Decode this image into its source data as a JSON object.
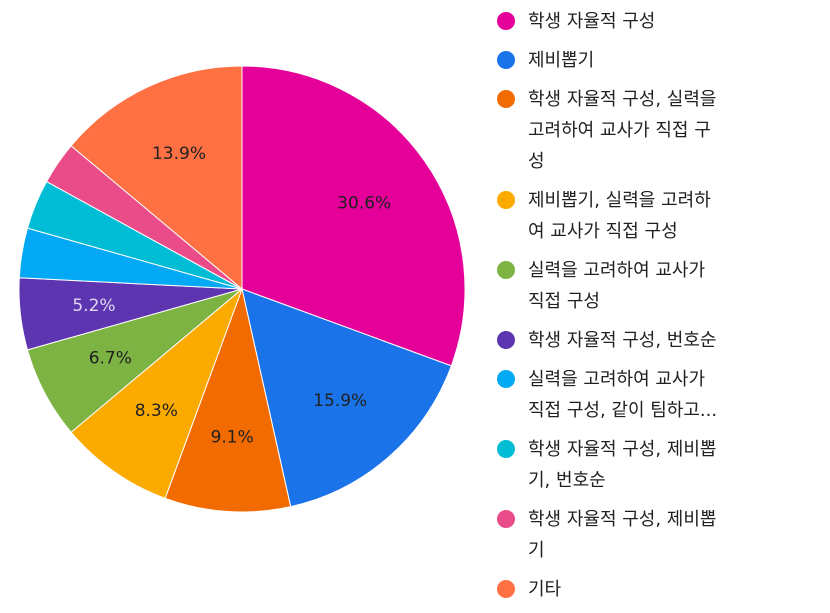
{
  "chart_data": {
    "type": "pie",
    "title": "",
    "legend_position": "right",
    "start_angle_deg": 0,
    "direction": "clockwise",
    "series": [
      {
        "name": "학생 자율적 구성",
        "label": "학생 자율적 구성",
        "value": 30.6,
        "color": "#e5009a",
        "data_label": "30.6%",
        "data_label_color": "#212121"
      },
      {
        "name": "제비뽑기",
        "label": "제비뽑기",
        "value": 15.9,
        "color": "#1a73e8",
        "data_label": "15.9%",
        "data_label_color": "#212121"
      },
      {
        "name": "학생 자율적 구성, 실력을 고려하여 교사가 직접 구성",
        "label": "학생 자율적 구성, 실력을\n고려하여 교사가 직접 구\n성",
        "value": 9.1,
        "color": "#f26b00",
        "data_label": "9.1%",
        "data_label_color": "#212121"
      },
      {
        "name": "제비뽑기, 실력을 고려하여 교사가 직접 구성",
        "label": "제비뽑기, 실력을 고려하\n여 교사가 직접 구성",
        "value": 8.3,
        "color": "#fbaa00",
        "data_label": "8.3%",
        "data_label_color": "#212121"
      },
      {
        "name": "실력을 고려하여 교사가 직접 구성",
        "label": "실력을 고려하여 교사가\n직접 구성",
        "value": 6.7,
        "color": "#7cb342",
        "data_label": "6.7%",
        "data_label_color": "#212121"
      },
      {
        "name": "학생 자율적 구성, 번호순",
        "label": "학생 자율적 구성, 번호순",
        "value": 5.2,
        "color": "#5e35b1",
        "data_label": "5.2%",
        "data_label_color": "#e0d8f0"
      },
      {
        "name": "실력을 고려하여 교사가 직접 구성, 같이 팀하고...",
        "label": "실력을 고려하여 교사가\n직접 구성, 같이 팀하고...",
        "value": 3.6,
        "color": "#03a9f4",
        "data_label": "",
        "data_label_color": "#212121"
      },
      {
        "name": "학생 자율적 구성, 제비뽑기, 번호순",
        "label": "학생 자율적 구성, 제비뽑\n기, 번호순",
        "value": 3.6,
        "color": "#00bcd4",
        "data_label": "",
        "data_label_color": "#212121"
      },
      {
        "name": "학생 자율적 구성, 제비뽑기",
        "label": "학생 자율적 구성, 제비뽑\n기",
        "value": 3.1,
        "color": "#ea4c89",
        "data_label": "",
        "data_label_color": "#212121"
      },
      {
        "name": "기타",
        "label": "기타",
        "value": 13.9,
        "color": "#ff7043",
        "data_label": "13.9%",
        "data_label_color": "#212121"
      }
    ]
  }
}
